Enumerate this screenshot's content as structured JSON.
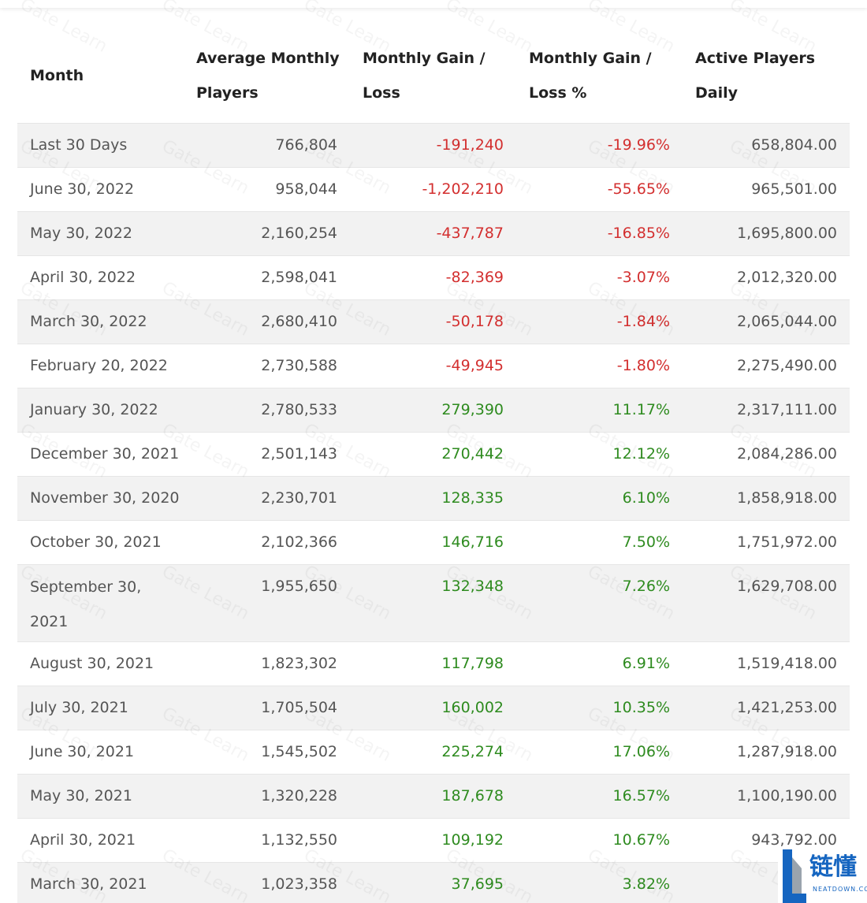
{
  "table": {
    "headers": [
      [
        "Month"
      ],
      [
        "Average Monthly",
        "Players"
      ],
      [
        "Monthly Gain /",
        "Loss"
      ],
      [
        "Monthly Gain /",
        "Loss %"
      ],
      [
        "Active Players",
        "Daily"
      ]
    ],
    "rows": [
      {
        "month": "Last 30 Days",
        "avg": "766,804",
        "gain": "-191,240",
        "pct": "-19.96%",
        "daily": "658,804.00",
        "trend": "negative"
      },
      {
        "month": "June 30, 2022",
        "avg": "958,044",
        "gain": "-1,202,210",
        "pct": "-55.65%",
        "daily": "965,501.00",
        "trend": "negative"
      },
      {
        "month": "May 30, 2022",
        "avg": "2,160,254",
        "gain": "-437,787",
        "pct": "-16.85%",
        "daily": "1,695,800.00",
        "trend": "negative"
      },
      {
        "month": "April 30, 2022",
        "avg": "2,598,041",
        "gain": "-82,369",
        "pct": "-3.07%",
        "daily": "2,012,320.00",
        "trend": "negative"
      },
      {
        "month": "March 30, 2022",
        "avg": "2,680,410",
        "gain": "-50,178",
        "pct": "-1.84%",
        "daily": "2,065,044.00",
        "trend": "negative"
      },
      {
        "month": "February 20, 2022",
        "avg": "2,730,588",
        "gain": "-49,945",
        "pct": "-1.80%",
        "daily": "2,275,490.00",
        "trend": "negative"
      },
      {
        "month": "January 30, 2022",
        "avg": "2,780,533",
        "gain": "279,390",
        "pct": "11.17%",
        "daily": "2,317,111.00",
        "trend": "positive"
      },
      {
        "month": "December 30, 2021",
        "avg": "2,501,143",
        "gain": "270,442",
        "pct": "12.12%",
        "daily": "2,084,286.00",
        "trend": "positive"
      },
      {
        "month": "November 30, 2020",
        "avg": "2,230,701",
        "gain": "128,335",
        "pct": "6.10%",
        "daily": "1,858,918.00",
        "trend": "positive"
      },
      {
        "month": "October 30, 2021",
        "avg": "2,102,366",
        "gain": "146,716",
        "pct": "7.50%",
        "daily": "1,751,972.00",
        "trend": "positive"
      },
      {
        "month": "September 30, 2021",
        "avg": "1,955,650",
        "gain": "132,348",
        "pct": "7.26%",
        "daily": "1,629,708.00",
        "trend": "positive"
      },
      {
        "month": "August 30, 2021",
        "avg": "1,823,302",
        "gain": "117,798",
        "pct": "6.91%",
        "daily": "1,519,418.00",
        "trend": "positive"
      },
      {
        "month": "July 30, 2021",
        "avg": "1,705,504",
        "gain": "160,002",
        "pct": "10.35%",
        "daily": "1,421,253.00",
        "trend": "positive"
      },
      {
        "month": "June 30, 2021",
        "avg": "1,545,502",
        "gain": "225,274",
        "pct": "17.06%",
        "daily": "1,287,918.00",
        "trend": "positive"
      },
      {
        "month": "May 30, 2021",
        "avg": "1,320,228",
        "gain": "187,678",
        "pct": "16.57%",
        "daily": "1,100,190.00",
        "trend": "positive"
      },
      {
        "month": "April 30, 2021",
        "avg": "1,132,550",
        "gain": "109,192",
        "pct": "10.67%",
        "daily": "943,792.00",
        "trend": "positive"
      },
      {
        "month": "March 30, 2021",
        "avg": "1,023,358",
        "gain": "37,695",
        "pct": "3.82%",
        "daily": "85",
        "trend": "positive"
      }
    ]
  },
  "watermark": {
    "text": "Gate Learn"
  },
  "badge": {
    "name": "链懂",
    "site": "NEATDOWN.COM",
    "icon": "neatdown-logo-icon"
  },
  "colors": {
    "negative": "#d32f2f",
    "positive": "#2e8b1f",
    "row_alt": "#f2f2f2",
    "brand": "#1565c0"
  }
}
